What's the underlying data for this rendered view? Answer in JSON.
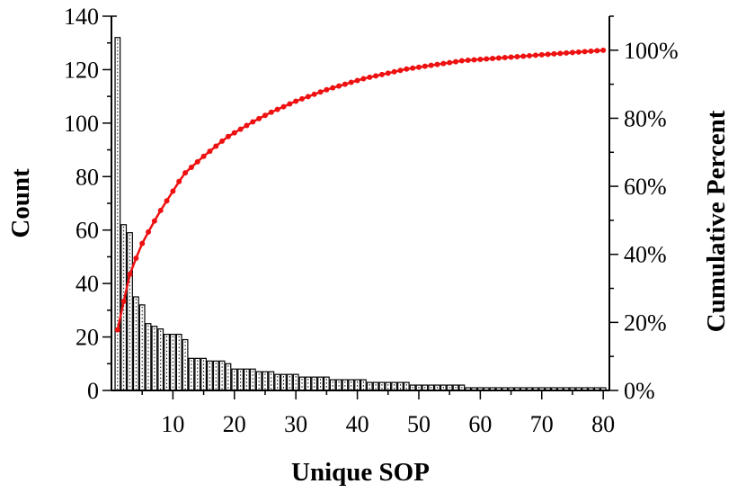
{
  "chart_data": {
    "type": "bar",
    "title": "",
    "xlabel": "Unique SOP",
    "ylabel": "Count",
    "y2label": "Cumulative Percent",
    "xlim": [
      0,
      81
    ],
    "ylim": [
      0,
      140
    ],
    "y2lim": [
      0,
      110
    ],
    "x_ticks": [
      10,
      20,
      30,
      40,
      50,
      60,
      70,
      80
    ],
    "x_tick_labels": [
      "10",
      "20",
      "30",
      "40",
      "50",
      "60",
      "70",
      "80"
    ],
    "y_ticks": [
      0,
      20,
      40,
      60,
      80,
      100,
      120,
      140
    ],
    "y_tick_labels": [
      "0",
      "20",
      "40",
      "60",
      "80",
      "100",
      "120",
      "140"
    ],
    "y2_ticks": [
      0,
      20,
      40,
      60,
      80,
      100
    ],
    "y2_tick_labels": [
      "0%",
      "20%",
      "40%",
      "60%",
      "80%",
      "100%"
    ],
    "grid": false,
    "colors": {
      "bars": "#ffffff",
      "bar_edge": "#000000",
      "cumulative_line": "#ee1111"
    },
    "x": [
      1,
      2,
      3,
      4,
      5,
      6,
      7,
      8,
      9,
      10,
      11,
      12,
      13,
      14,
      15,
      16,
      17,
      18,
      19,
      20,
      21,
      22,
      23,
      24,
      25,
      26,
      27,
      28,
      29,
      30,
      31,
      32,
      33,
      34,
      35,
      36,
      37,
      38,
      39,
      40,
      41,
      42,
      43,
      44,
      45,
      46,
      47,
      48,
      49,
      50,
      51,
      52,
      53,
      54,
      55,
      56,
      57,
      58,
      59,
      60,
      61,
      62,
      63,
      64,
      65,
      66,
      67,
      68,
      69,
      70,
      71,
      72,
      73,
      74,
      75,
      76,
      77,
      78,
      79,
      80
    ],
    "counts": [
      132,
      62,
      59,
      35,
      32,
      25,
      24,
      23,
      21,
      21,
      21,
      19,
      12,
      12,
      12,
      11,
      11,
      11,
      10,
      8,
      8,
      8,
      8,
      7,
      7,
      7,
      6,
      6,
      6,
      6,
      5,
      5,
      5,
      5,
      5,
      4,
      4,
      4,
      4,
      4,
      4,
      3,
      3,
      3,
      3,
      3,
      3,
      3,
      2,
      2,
      2,
      2,
      2,
      2,
      2,
      2,
      2,
      1,
      1,
      1,
      1,
      1,
      1,
      1,
      1,
      1,
      1,
      1,
      1,
      1,
      1,
      1,
      1,
      1,
      1,
      1,
      1,
      1,
      1,
      1
    ]
  }
}
